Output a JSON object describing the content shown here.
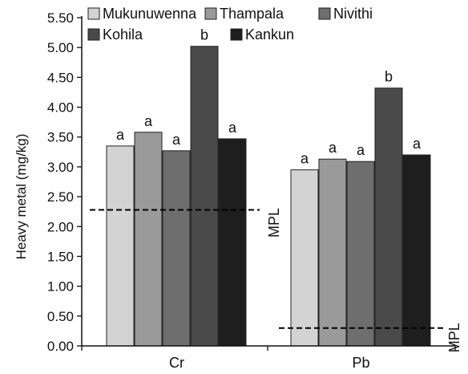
{
  "chart_data": {
    "type": "bar",
    "ylabel": "Heavy metal (mg/kg)",
    "ylim": [
      0,
      5.5
    ],
    "yticks": [
      "0.00",
      "0.50",
      "1.00",
      "1.50",
      "2.00",
      "2.50",
      "3.00",
      "3.50",
      "4.00",
      "4.50",
      "5.00",
      "5.50"
    ],
    "categories": [
      "Cr",
      "Pb"
    ],
    "series": [
      {
        "name": "Mukunuwenna",
        "color": "#d3d3d3",
        "values": [
          3.35,
          2.95
        ],
        "labels": [
          "a",
          "a"
        ]
      },
      {
        "name": "Thampala",
        "color": "#9a9a9a",
        "values": [
          3.58,
          3.13
        ],
        "labels": [
          "a",
          "a"
        ]
      },
      {
        "name": "Nivithi",
        "color": "#6e6e6e",
        "values": [
          3.27,
          3.09
        ],
        "labels": [
          "a",
          "a"
        ]
      },
      {
        "name": "Kohila",
        "color": "#4a4a4a",
        "values": [
          5.02,
          4.32
        ],
        "labels": [
          "b",
          "b"
        ]
      },
      {
        "name": "Kankun",
        "color": "#1e1e1e",
        "values": [
          3.47,
          3.2
        ],
        "labels": [
          "a",
          "a"
        ]
      }
    ],
    "reference_lines": [
      {
        "label": "MPL",
        "value": 2.28,
        "category": 0
      },
      {
        "label": "MPL",
        "value": 0.3,
        "category": 1
      }
    ],
    "legend_position": "top"
  }
}
